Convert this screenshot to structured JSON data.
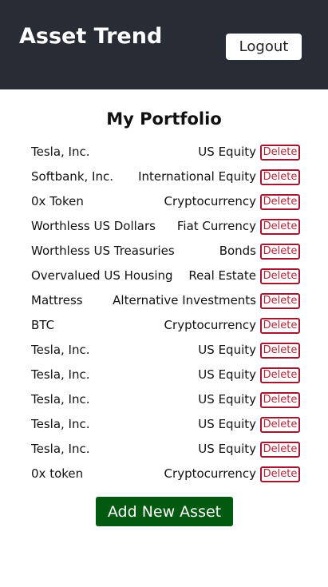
{
  "header": {
    "app_title": "Asset Trend",
    "logout_label": "Logout"
  },
  "portfolio": {
    "title": "My Portfolio",
    "delete_label": "Delete",
    "assets": [
      {
        "name": "Tesla, Inc.",
        "type": "US Equity"
      },
      {
        "name": "Softbank, Inc.",
        "type": "International Equity"
      },
      {
        "name": "0x Token",
        "type": "Cryptocurrency"
      },
      {
        "name": "Worthless US Dollars",
        "type": "Fiat Currency"
      },
      {
        "name": "Worthless US Treasuries",
        "type": "Bonds"
      },
      {
        "name": "Overvalued US Housing",
        "type": "Real Estate"
      },
      {
        "name": "Mattress",
        "type": "Alternative Investments"
      },
      {
        "name": "BTC",
        "type": "Cryptocurrency"
      },
      {
        "name": "Tesla, Inc.",
        "type": "US Equity"
      },
      {
        "name": "Tesla, Inc.",
        "type": "US Equity"
      },
      {
        "name": "Tesla, Inc.",
        "type": "US Equity"
      },
      {
        "name": "Tesla, Inc.",
        "type": "US Equity"
      },
      {
        "name": "Tesla, Inc.",
        "type": "US Equity"
      },
      {
        "name": "0x token",
        "type": "Cryptocurrency"
      }
    ],
    "add_label": "Add New Asset"
  },
  "colors": {
    "header_bg": "#282c34",
    "delete_red": "#a01830",
    "add_green": "#015a10"
  }
}
